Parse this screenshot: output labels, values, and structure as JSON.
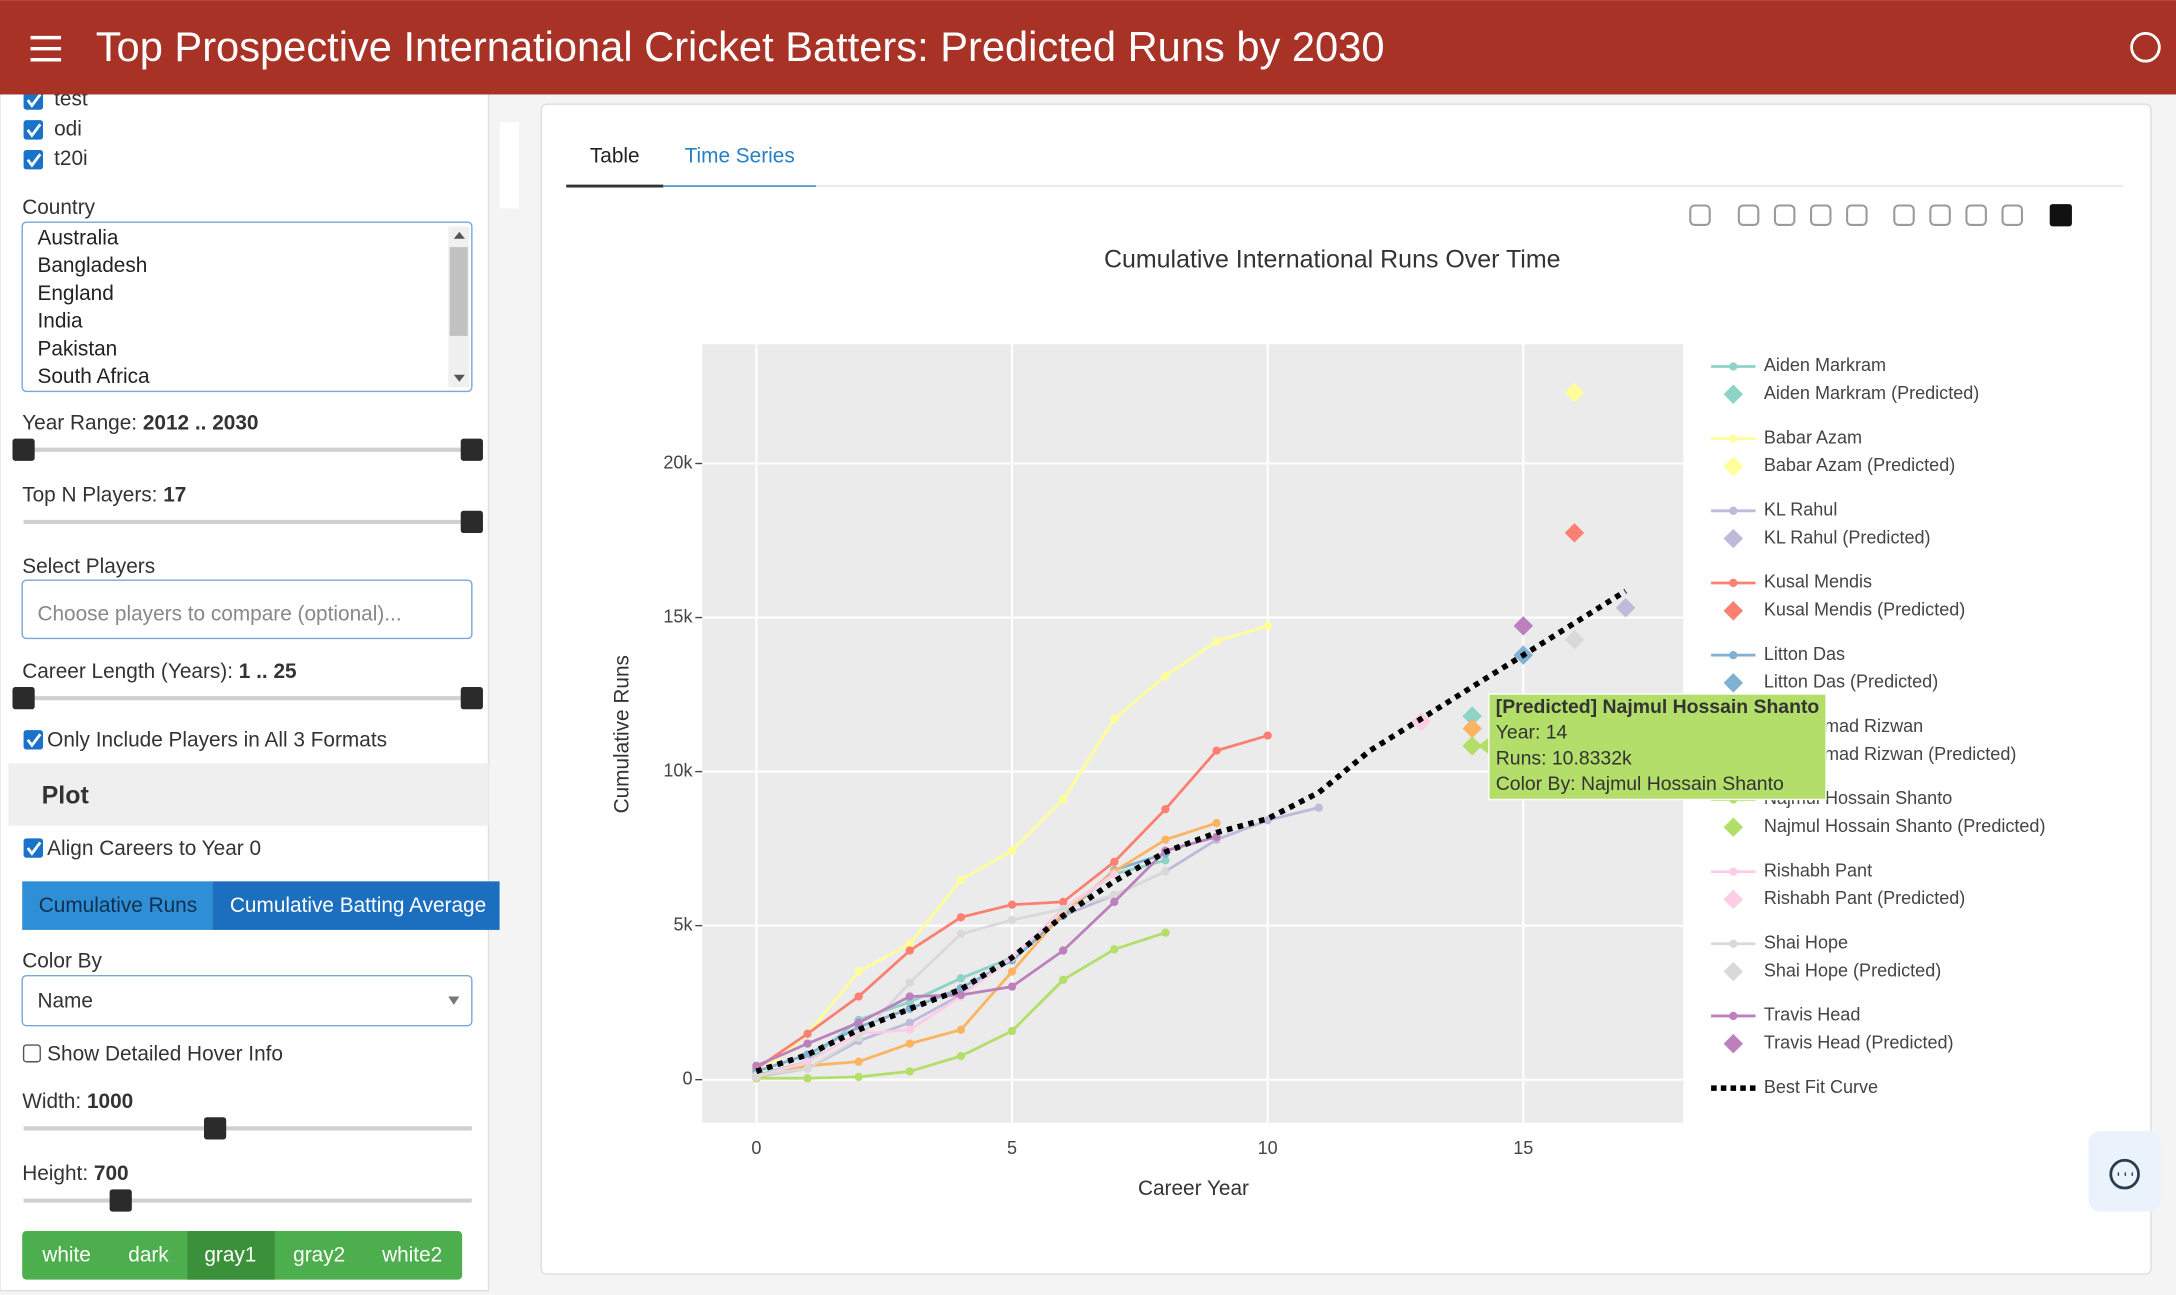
{
  "header": {
    "title": "Top Prospective International Cricket Batters: Predicted Runs by 2030"
  },
  "sidebar": {
    "formats": [
      "test",
      "odi",
      "t20i"
    ],
    "country": {
      "label": "Country",
      "options": [
        "Australia",
        "Bangladesh",
        "England",
        "India",
        "Pakistan",
        "South Africa"
      ]
    },
    "year_range": {
      "label": "Year Range:",
      "value": "2012 .. 2030"
    },
    "top_n": {
      "label": "Top N Players:",
      "value": 17
    },
    "select_players": {
      "label": "Select Players",
      "placeholder": "Choose players to compare (optional)..."
    },
    "career_length": {
      "label": "Career Length (Years):",
      "value": "1 .. 25"
    },
    "only_all_formats": "Only Include Players in All 3 Formats",
    "plot_heading": "Plot",
    "align_careers": "Align Careers to Year 0",
    "metric_buttons": [
      "Cumulative Runs",
      "Cumulative Batting Average"
    ],
    "color_by": {
      "label": "Color By",
      "value": "Name"
    },
    "hover_info": "Show Detailed Hover Info",
    "width": {
      "label": "Width:",
      "value": 1000
    },
    "height": {
      "label": "Height:",
      "value": 700
    },
    "themes": [
      "white",
      "dark",
      "gray1",
      "gray2",
      "white2"
    ]
  },
  "tabs": [
    "Table",
    "Time Series"
  ],
  "chart_data": {
    "type": "line",
    "title": "Cumulative International Runs Over Time",
    "x_label": "Career Year",
    "y_label": "Cumulative Runs",
    "xlim": [
      -1.06,
      18.13
    ],
    "ylim": [
      -1400,
      23870
    ],
    "xticks": [
      0,
      5,
      10,
      15
    ],
    "yticks": [
      0,
      {
        "value": 5000,
        "label": "5k"
      },
      {
        "value": 10000,
        "label": "10k"
      },
      {
        "value": 15000,
        "label": "15k"
      },
      {
        "value": 20000,
        "label": "20k"
      }
    ],
    "grid": true,
    "legend": "right",
    "series": [
      {
        "name": "Aiden Markram",
        "color": "#8dd3c7",
        "mode": "lines+markers",
        "x": [
          0,
          1,
          2,
          3,
          4,
          5,
          6,
          7,
          8
        ],
        "values": [
          135,
          585,
          1940,
          2520,
          3290,
          3960,
          5540,
          6670,
          7120
        ]
      },
      {
        "name": "Aiden Markram (Predicted)",
        "color": "#8dd3c7",
        "mode": "markers",
        "x": [
          14
        ],
        "values": [
          11800
        ]
      },
      {
        "name": "Babar Azam",
        "color": "#ffff99",
        "mode": "lines+markers",
        "x": [
          0,
          1,
          2,
          3,
          4,
          5,
          6,
          7,
          8,
          9,
          10
        ],
        "values": [
          135,
          1485,
          3510,
          4410,
          6490,
          7430,
          9100,
          11710,
          13110,
          14230,
          14730
        ]
      },
      {
        "name": "Babar Azam (Predicted)",
        "color": "#ffff99",
        "mode": "markers",
        "x": [
          16
        ],
        "values": [
          22300
        ]
      },
      {
        "name": "KL Rahul",
        "color": "#bebada",
        "mode": "lines+markers",
        "x": [
          0,
          1,
          2,
          3,
          4,
          5,
          6,
          7,
          8,
          9,
          10,
          11
        ],
        "values": [
          90,
          360,
          1260,
          1850,
          2750,
          3960,
          5320,
          5990,
          6760,
          7790,
          8420,
          8830
        ]
      },
      {
        "name": "KL Rahul (Predicted)",
        "color": "#bebada",
        "mode": "markers",
        "x": [
          17
        ],
        "values": [
          15320
        ]
      },
      {
        "name": "Kusal Mendis",
        "color": "#fb8072",
        "mode": "lines+markers",
        "x": [
          0,
          1,
          2,
          3,
          4,
          5,
          6,
          7,
          8,
          9,
          10
        ],
        "values": [
          360,
          1490,
          2700,
          4190,
          5270,
          5680,
          5770,
          7070,
          8780,
          10680,
          11170
        ]
      },
      {
        "name": "Kusal Mendis (Predicted)",
        "color": "#fb8072",
        "mode": "markers",
        "x": [
          16
        ],
        "values": [
          17750
        ]
      },
      {
        "name": "Litton Das",
        "color": "#80b1d3",
        "mode": "lines+markers",
        "x": [
          0,
          1,
          2,
          3,
          4,
          5,
          6,
          7,
          8
        ],
        "values": [
          270,
          810,
          1710,
          2300,
          2970,
          3870,
          5320,
          6800,
          7340
        ]
      },
      {
        "name": "Litton Das (Predicted)",
        "color": "#80b1d3",
        "mode": "markers",
        "x": [
          15
        ],
        "values": [
          13780
        ]
      },
      {
        "name": "Mohammad Rizwan",
        "color": "#fdb462",
        "mode": "lines+markers",
        "x": [
          0,
          1,
          2,
          3,
          4,
          5,
          6,
          7,
          8,
          9
        ],
        "values": [
          90,
          450,
          585,
          1170,
          1620,
          3510,
          5410,
          6760,
          7790,
          8330
        ]
      },
      {
        "name": "Mohammad Rizwan (Predicted)",
        "color": "#fdb462",
        "mode": "markers",
        "x": [
          14
        ],
        "values": [
          11400
        ]
      },
      {
        "name": "Najmul Hossain Shanto",
        "color": "#b3de69",
        "mode": "lines+markers",
        "x": [
          0,
          1,
          2,
          3,
          4,
          5,
          6,
          7,
          8
        ],
        "values": [
          45,
          45,
          90,
          270,
          765,
          1580,
          3240,
          4230,
          4770
        ]
      },
      {
        "name": "Najmul Hossain Shanto (Predicted)",
        "color": "#b3de69",
        "mode": "markers",
        "x": [
          14
        ],
        "values": [
          10833.2
        ]
      },
      {
        "name": "Rishabh Pant",
        "color": "#fccde5",
        "mode": "lines+markers",
        "x": [
          0,
          1,
          2,
          3,
          4,
          5,
          6,
          7
        ],
        "values": [
          90,
          585,
          1490,
          1620,
          2700,
          3960,
          5540,
          6670
        ]
      },
      {
        "name": "Rishabh Pant (Predicted)",
        "color": "#fccde5",
        "mode": "markers",
        "x": [
          13
        ],
        "values": [
          11620
        ]
      },
      {
        "name": "Shai Hope",
        "color": "#d9d9d9",
        "mode": "lines+markers",
        "x": [
          0,
          1,
          2,
          3,
          4,
          5,
          6,
          7,
          8
        ],
        "values": [
          135,
          360,
          1350,
          3150,
          4730,
          5180,
          5540,
          5990,
          6760
        ]
      },
      {
        "name": "Shai Hope (Predicted)",
        "color": "#d9d9d9",
        "mode": "markers",
        "x": [
          16
        ],
        "values": [
          14280
        ]
      },
      {
        "name": "Travis Head",
        "color": "#bc80bd",
        "mode": "lines+markers",
        "x": [
          0,
          1,
          2,
          3,
          4,
          5,
          6,
          7,
          8,
          9
        ],
        "values": [
          450,
          1170,
          1850,
          2700,
          2750,
          3020,
          4190,
          5770,
          7430,
          7880
        ]
      },
      {
        "name": "Travis Head (Predicted)",
        "color": "#bc80bd",
        "mode": "markers",
        "x": [
          15
        ],
        "values": [
          14730
        ]
      },
      {
        "name": "Best Fit Curve",
        "color": "#000000",
        "mode": "lines",
        "dash": "dot",
        "x": [
          0,
          1,
          2,
          3,
          4,
          5,
          6,
          7,
          8,
          9,
          10,
          11,
          12,
          13,
          14,
          15,
          16,
          17
        ],
        "values": [
          270,
          810,
          1620,
          2300,
          2930,
          3960,
          5320,
          6440,
          7390,
          8020,
          8470,
          9320,
          10680,
          11710,
          12750,
          13780,
          14820,
          15860
        ]
      }
    ],
    "tooltip": {
      "color": "#b3de69",
      "lines": [
        "[Predicted] Najmul Hossain Shanto",
        "Year: 14",
        "Runs: 10.8332k",
        "Color By: Najmul Hossain Shanto"
      ]
    }
  }
}
